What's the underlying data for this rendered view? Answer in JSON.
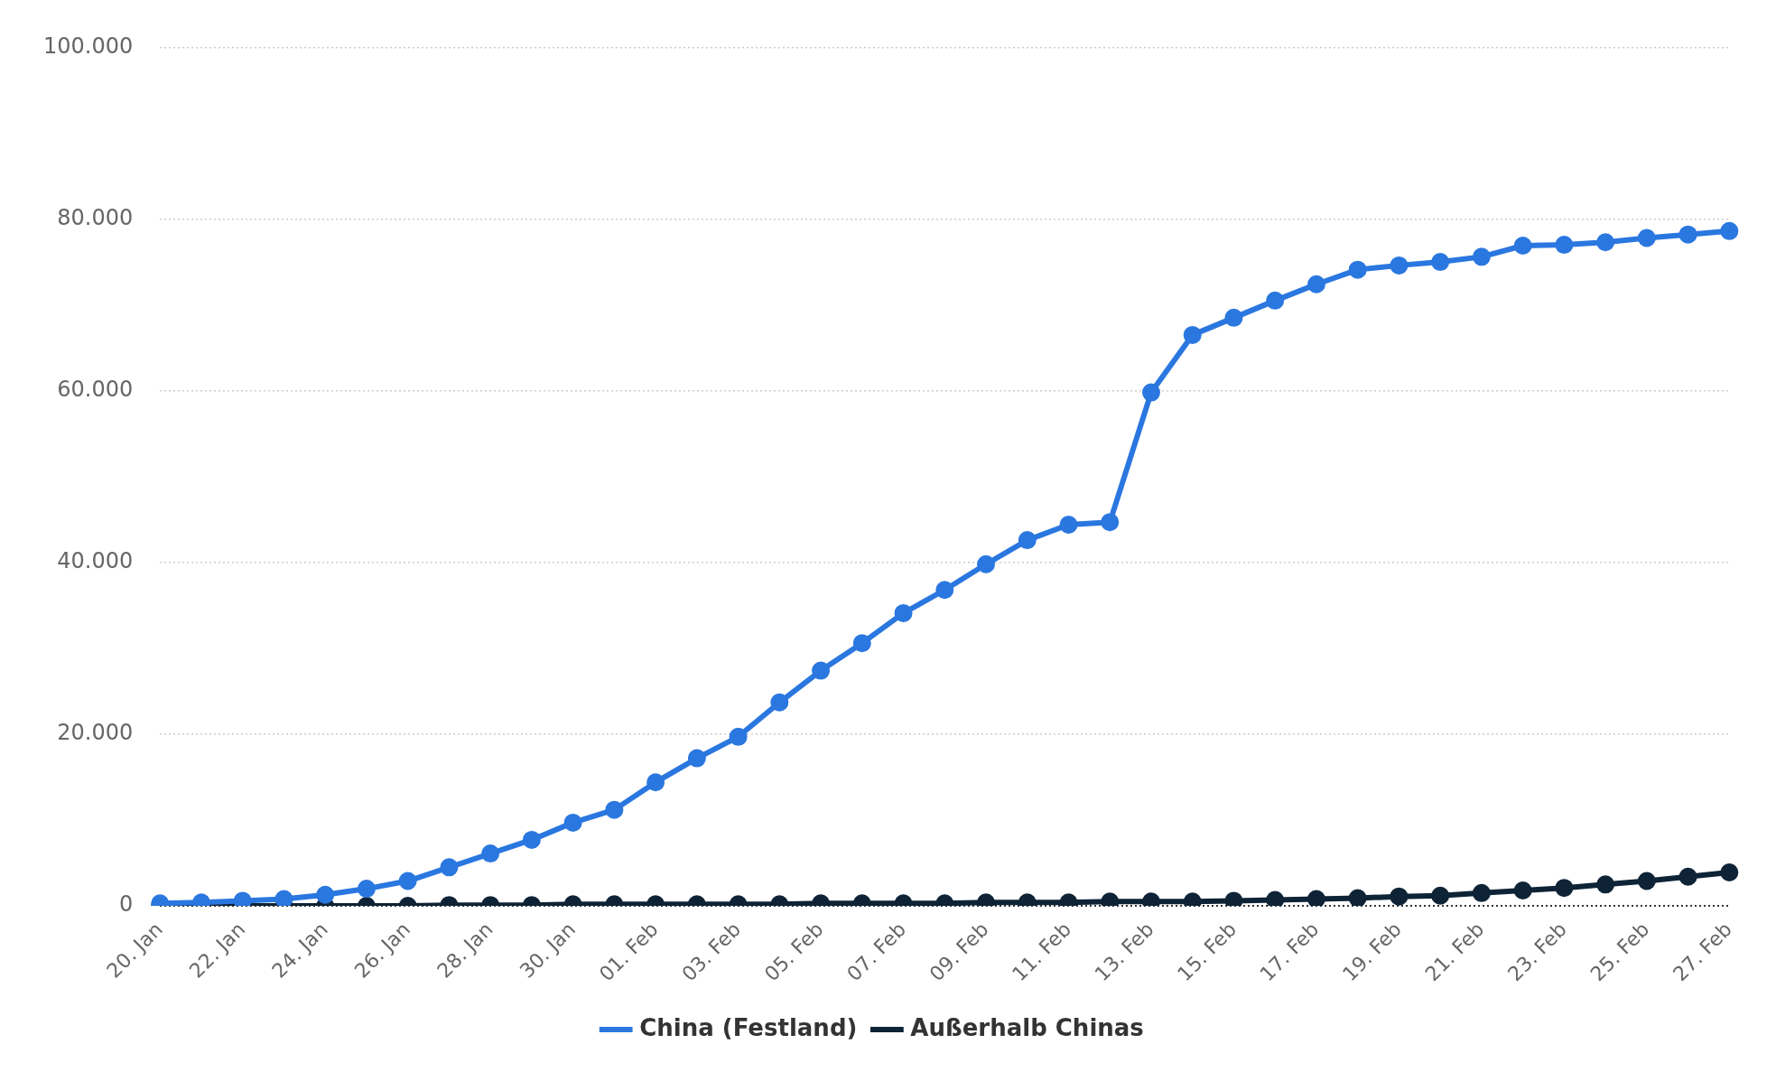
{
  "chart_data": {
    "type": "line",
    "categories": [
      "20. Jan",
      null,
      "22. Jan",
      null,
      "24. Jan",
      null,
      "26. Jan",
      null,
      "28. Jan",
      null,
      "30. Jan",
      null,
      "01. Feb",
      null,
      "03. Feb",
      null,
      "05. Feb",
      null,
      "07. Feb",
      null,
      "09. Feb",
      null,
      "11. Feb",
      null,
      "13. Feb",
      null,
      "15. Feb",
      null,
      "17. Feb",
      null,
      "19. Feb",
      null,
      "21. Feb",
      null,
      "23. Feb",
      null,
      "25. Feb",
      null,
      "27. Feb"
    ],
    "series": [
      {
        "name": "China (Festland)",
        "color": "#2a77e0",
        "values": [
          300,
          400,
          600,
          800,
          1300,
          2000,
          2900,
          4500,
          6100,
          7700,
          9700,
          11200,
          14400,
          17200,
          19700,
          23700,
          27400,
          30600,
          34100,
          36800,
          39800,
          42600,
          44400,
          44700,
          59800,
          66500,
          68500,
          70500,
          72400,
          74100,
          74600,
          75000,
          75600,
          76900,
          77000,
          77300,
          77800,
          78200,
          78600
        ]
      },
      {
        "name": "Außerhalb Chinas",
        "color": "#0e2336",
        "values": [
          0,
          0,
          0,
          0,
          0,
          0,
          0,
          100,
          100,
          100,
          200,
          200,
          200,
          200,
          200,
          200,
          300,
          300,
          300,
          300,
          400,
          400,
          400,
          500,
          500,
          500,
          600,
          700,
          800,
          900,
          1100,
          1200,
          1500,
          1800,
          2100,
          2500,
          2900,
          3400,
          3900
        ]
      }
    ],
    "ylim": [
      0,
      100000
    ],
    "yticks": [
      {
        "value": 0,
        "label": "0"
      },
      {
        "value": 20000,
        "label": "20.000"
      },
      {
        "value": 40000,
        "label": "40.000"
      },
      {
        "value": 60000,
        "label": "60.000"
      },
      {
        "value": 80000,
        "label": "80.000"
      },
      {
        "value": 100000,
        "label": "100.000"
      }
    ],
    "grid": "y",
    "legend": "bottom",
    "marker": "circle",
    "line_style": "solid"
  }
}
